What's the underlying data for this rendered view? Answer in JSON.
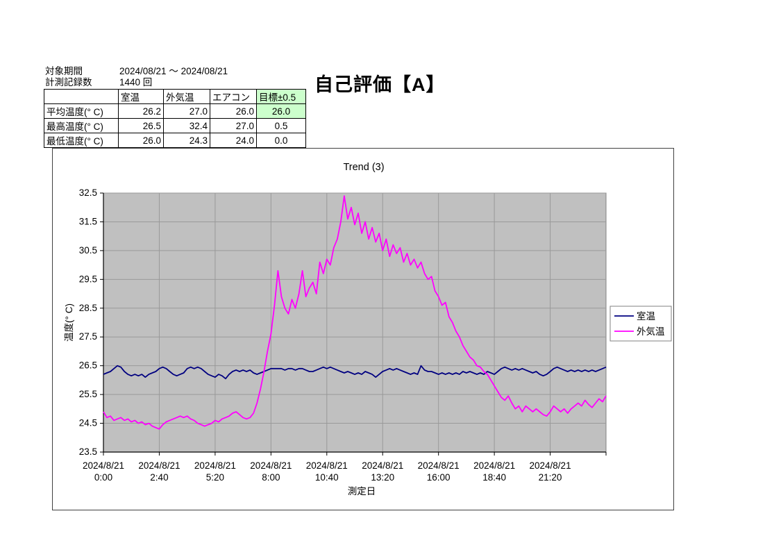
{
  "info": {
    "period_label": "対象期間",
    "period_value": "2024/08/21 ～ 2024/08/21",
    "count_label": "計測記録数",
    "count_value": "1440 回"
  },
  "evaluation_title": "自己評価【A】",
  "summary_table": {
    "col_headers": [
      "",
      "室温",
      "外気温",
      "エアコン",
      "目標±0.5"
    ],
    "rows": [
      {
        "label": "平均温度(° C)",
        "values": [
          "26.2",
          "27.0",
          "26.0",
          "26.0"
        ]
      },
      {
        "label": "最高温度(° C)",
        "values": [
          "26.5",
          "32.4",
          "27.0",
          "0.5"
        ]
      },
      {
        "label": "最低温度(° C)",
        "values": [
          "26.0",
          "24.3",
          "24.0",
          "0.0"
        ]
      }
    ],
    "highlight_color": "#ccffcc"
  },
  "chart_data": {
    "type": "line",
    "title": "Trend (3)",
    "xlabel": "測定日",
    "ylabel": "温度(° C)",
    "ylim": [
      23.5,
      32.5
    ],
    "ytick_step": 1.0,
    "yticks": [
      23.5,
      24.5,
      25.5,
      26.5,
      27.5,
      28.5,
      29.5,
      30.5,
      31.5,
      32.5
    ],
    "x_max_minute": 1440,
    "x_step_minutes": 10,
    "xticks": [
      {
        "minute": 0,
        "date": "2024/8/21",
        "time": "0:00"
      },
      {
        "minute": 160,
        "date": "2024/8/21",
        "time": "2:40"
      },
      {
        "minute": 320,
        "date": "2024/8/21",
        "time": "5:20"
      },
      {
        "minute": 480,
        "date": "2024/8/21",
        "time": "8:00"
      },
      {
        "minute": 640,
        "date": "2024/8/21",
        "time": "10:40"
      },
      {
        "minute": 800,
        "date": "2024/8/21",
        "time": "13:20"
      },
      {
        "minute": 960,
        "date": "2024/8/21",
        "time": "16:00"
      },
      {
        "minute": 1120,
        "date": "2024/8/21",
        "time": "18:40"
      },
      {
        "minute": 1280,
        "date": "2024/8/21",
        "time": "21:20"
      }
    ],
    "grid": true,
    "plot_bg": "#c0c0c0",
    "grid_color": "#999999",
    "border_color": "#808080",
    "axis_color": "#000000",
    "legend": {
      "position": "right",
      "entries": [
        {
          "id": "indoor",
          "name": "室温",
          "color": "#000080"
        },
        {
          "id": "outdoor",
          "name": "外気温",
          "color": "#ff00ff"
        }
      ]
    },
    "series": [
      {
        "id": "indoor",
        "name": "室温",
        "color": "#000080",
        "values": [
          26.2,
          26.25,
          26.3,
          26.4,
          26.5,
          26.45,
          26.3,
          26.2,
          26.15,
          26.2,
          26.15,
          26.2,
          26.1,
          26.2,
          26.25,
          26.3,
          26.4,
          26.45,
          26.4,
          26.3,
          26.2,
          26.15,
          26.2,
          26.25,
          26.4,
          26.45,
          26.4,
          26.45,
          26.4,
          26.3,
          26.2,
          26.15,
          26.1,
          26.2,
          26.15,
          26.05,
          26.2,
          26.3,
          26.35,
          26.3,
          26.35,
          26.3,
          26.35,
          26.25,
          26.2,
          26.25,
          26.3,
          26.35,
          26.4,
          26.4,
          26.4,
          26.4,
          26.35,
          26.4,
          26.4,
          26.35,
          26.4,
          26.4,
          26.35,
          26.3,
          26.3,
          26.35,
          26.4,
          26.45,
          26.4,
          26.45,
          26.4,
          26.35,
          26.3,
          26.25,
          26.3,
          26.25,
          26.2,
          26.25,
          26.2,
          26.3,
          26.25,
          26.2,
          26.1,
          26.2,
          26.3,
          26.35,
          26.4,
          26.35,
          26.4,
          26.35,
          26.3,
          26.25,
          26.2,
          26.25,
          26.2,
          26.5,
          26.35,
          26.3,
          26.3,
          26.25,
          26.2,
          26.25,
          26.2,
          26.25,
          26.2,
          26.25,
          26.2,
          26.3,
          26.25,
          26.3,
          26.25,
          26.2,
          26.25,
          26.2,
          26.3,
          26.25,
          26.2,
          26.3,
          26.4,
          26.45,
          26.4,
          26.35,
          26.4,
          26.35,
          26.4,
          26.35,
          26.3,
          26.25,
          26.3,
          26.2,
          26.15,
          26.2,
          26.3,
          26.4,
          26.45,
          26.4,
          26.35,
          26.3,
          26.35,
          26.3,
          26.35,
          26.3,
          26.35,
          26.3,
          26.35,
          26.3,
          26.35,
          26.4,
          26.45
        ]
      },
      {
        "id": "outdoor",
        "name": "外気温",
        "color": "#ff00ff",
        "values": [
          24.9,
          24.7,
          24.75,
          24.6,
          24.65,
          24.7,
          24.6,
          24.65,
          24.55,
          24.6,
          24.5,
          24.55,
          24.45,
          24.5,
          24.4,
          24.35,
          24.3,
          24.45,
          24.55,
          24.6,
          24.65,
          24.7,
          24.75,
          24.7,
          24.75,
          24.65,
          24.6,
          24.5,
          24.45,
          24.4,
          24.45,
          24.5,
          24.6,
          24.55,
          24.65,
          24.7,
          24.75,
          24.85,
          24.9,
          24.8,
          24.7,
          24.65,
          24.7,
          24.85,
          25.2,
          25.7,
          26.3,
          27.0,
          27.6,
          28.6,
          29.8,
          28.9,
          28.5,
          28.3,
          28.8,
          28.5,
          29.0,
          29.8,
          28.9,
          29.2,
          29.4,
          29.0,
          30.1,
          29.7,
          30.2,
          30.0,
          30.6,
          30.9,
          31.5,
          32.4,
          31.6,
          32.0,
          31.4,
          31.8,
          31.1,
          31.5,
          30.9,
          31.3,
          30.8,
          31.1,
          30.5,
          30.9,
          30.3,
          30.7,
          30.4,
          30.6,
          30.1,
          30.4,
          30.0,
          30.2,
          29.9,
          30.1,
          29.7,
          29.5,
          29.6,
          29.1,
          28.9,
          28.6,
          28.7,
          28.2,
          28.0,
          27.7,
          27.5,
          27.2,
          27.0,
          26.8,
          26.7,
          26.5,
          26.45,
          26.3,
          26.2,
          26.0,
          25.8,
          25.6,
          25.4,
          25.3,
          25.45,
          25.2,
          25.0,
          25.1,
          24.9,
          25.1,
          25.0,
          24.9,
          25.0,
          24.9,
          24.8,
          24.75,
          24.9,
          25.1,
          25.0,
          24.9,
          25.0,
          24.85,
          25.0,
          25.1,
          25.2,
          25.1,
          25.3,
          25.15,
          25.05,
          25.2,
          25.35,
          25.25,
          25.45
        ]
      }
    ]
  }
}
